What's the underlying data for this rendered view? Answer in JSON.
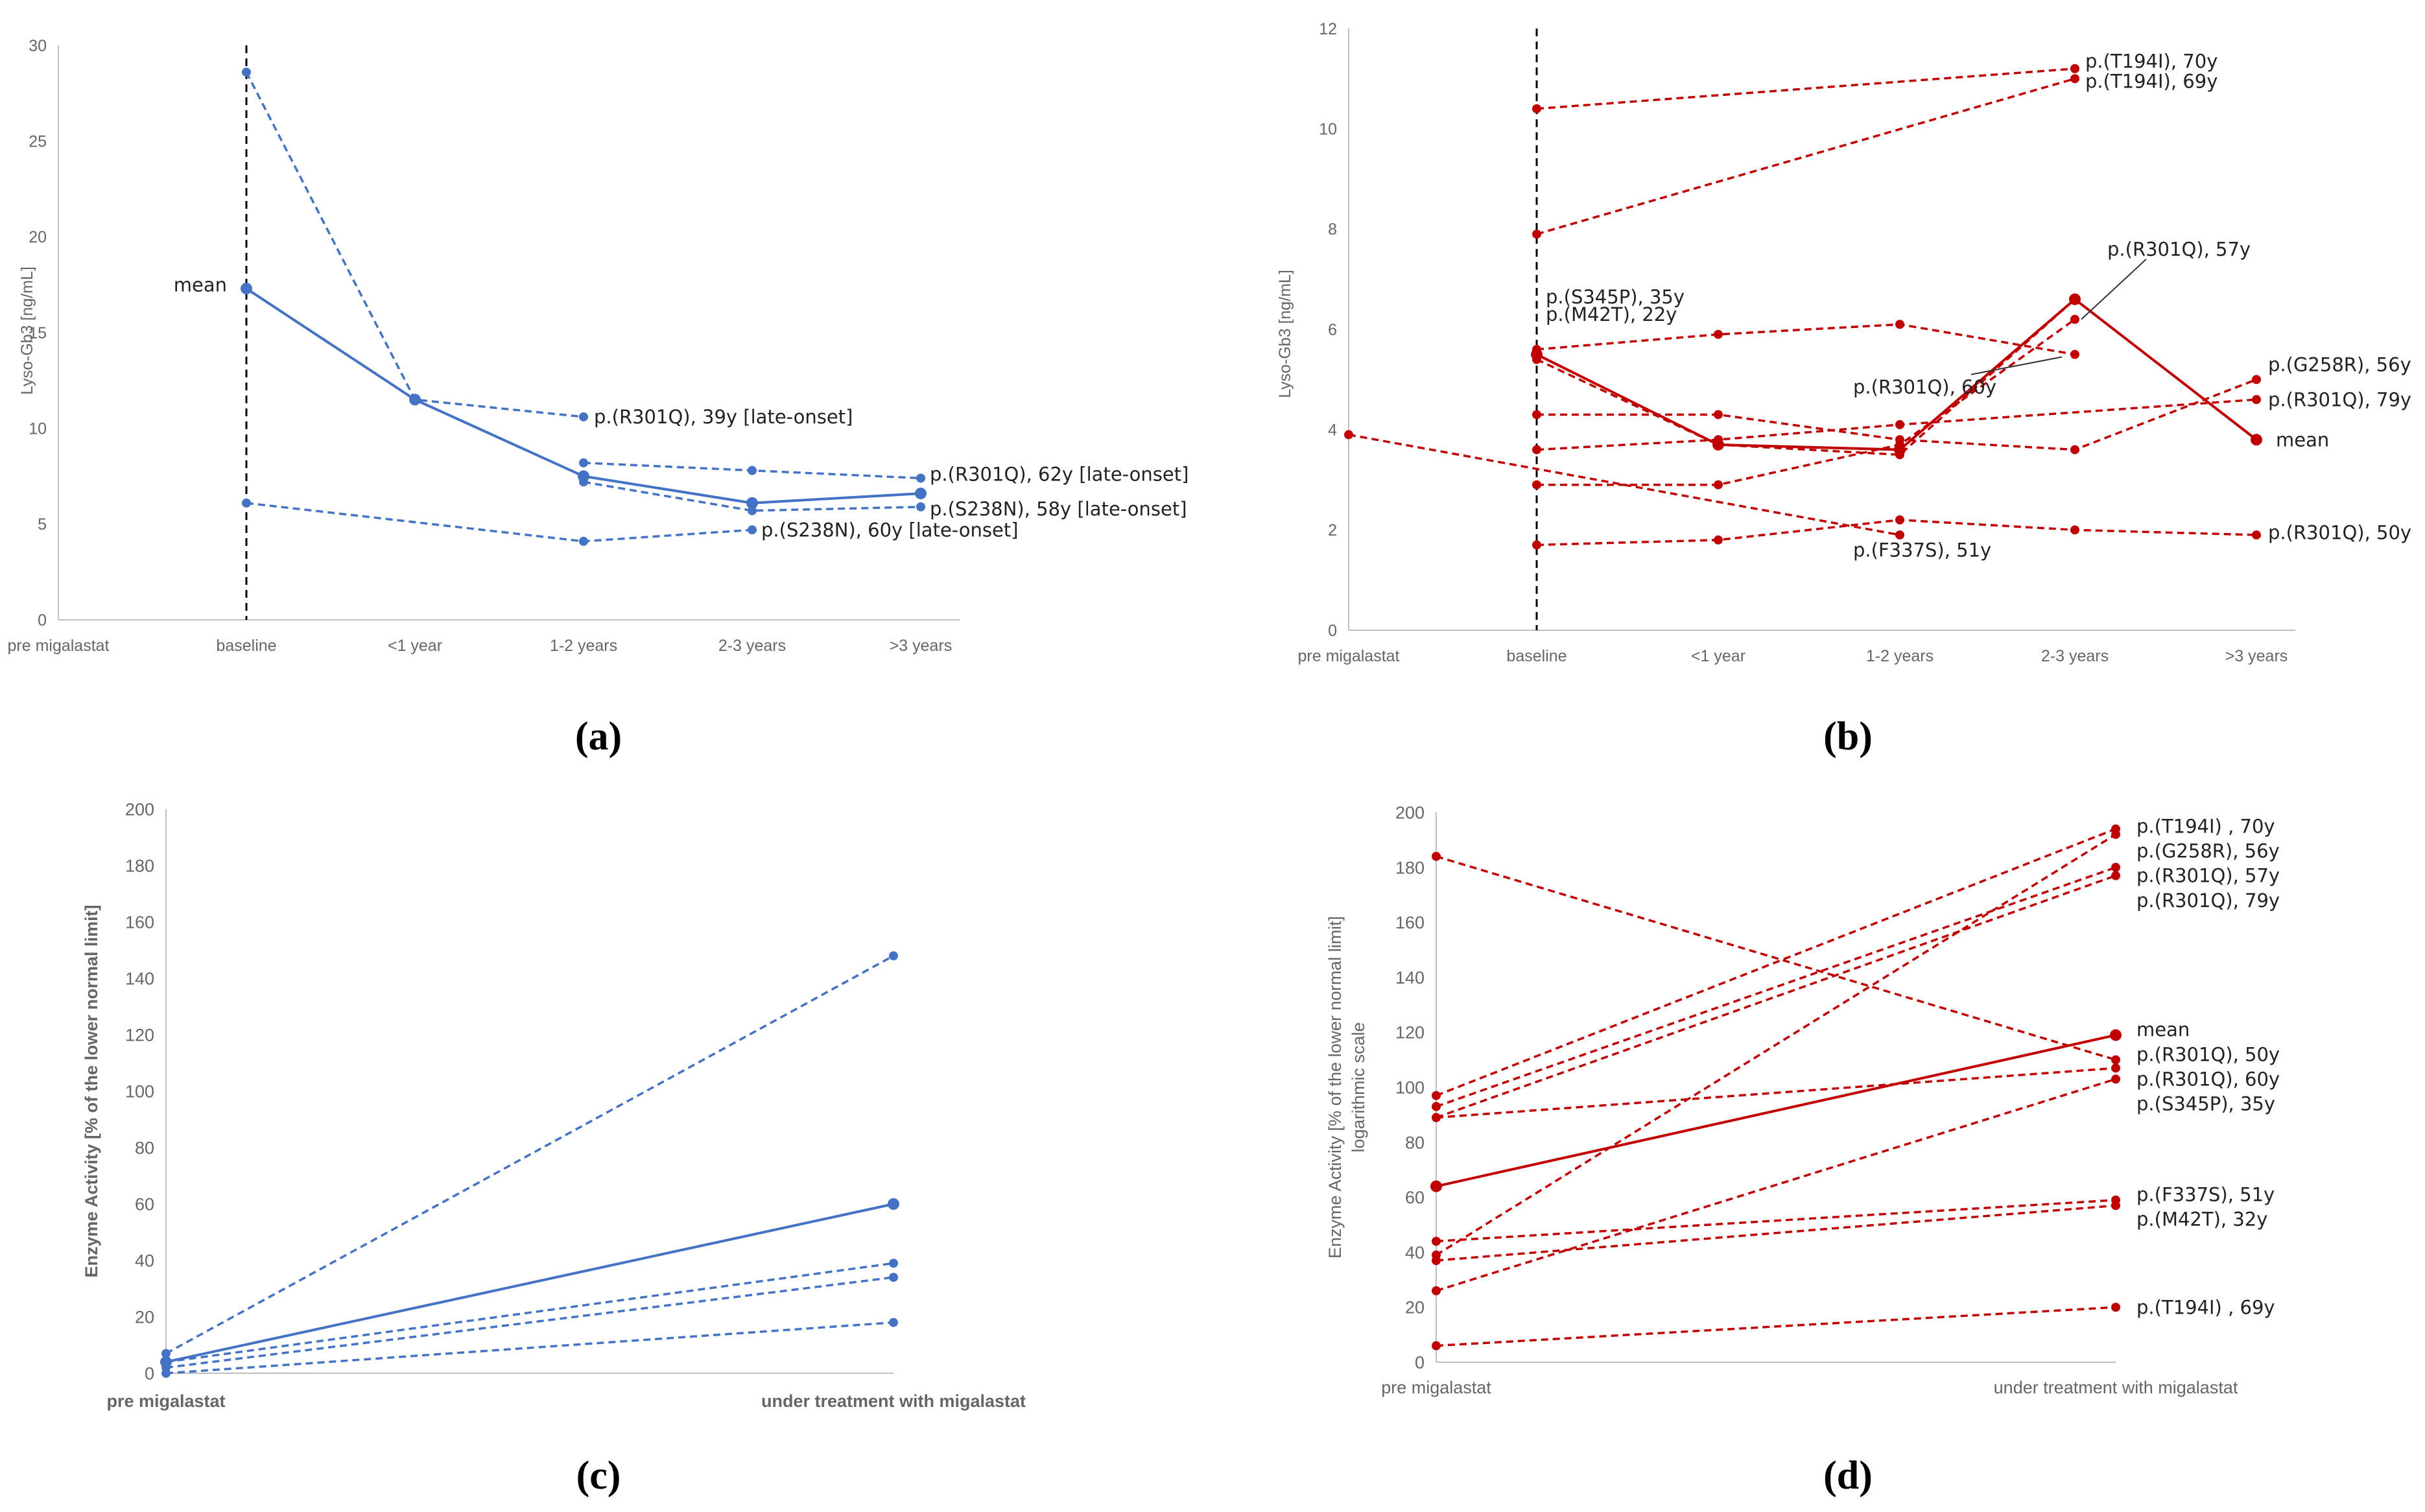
{
  "figure": {
    "panel_labels": [
      "(a)",
      "(b)",
      "(c)",
      "(d)"
    ]
  },
  "colors": {
    "blue": "#4472c4",
    "red": "#c00000",
    "axis": "#bfbfbf",
    "text": "#666666"
  },
  "chart_data": [
    {
      "id": "a",
      "type": "line",
      "xlabel": "",
      "ylabel": "Lyso-Gb3 [ng/mL]",
      "categories": [
        "pre migalastat",
        "baseline",
        "<1 year",
        "1-2 years",
        "2-3 years",
        ">3 years"
      ],
      "ylim": [
        0,
        30
      ],
      "yticks": [
        0,
        5,
        10,
        15,
        20,
        25,
        30
      ],
      "baseline_marker": "baseline",
      "series": [
        {
          "style": "dashed",
          "values": [
            null,
            28.6,
            11.5,
            10.6,
            null,
            null
          ]
        },
        {
          "style": "dashed",
          "values": [
            null,
            null,
            null,
            8.2,
            7.8,
            7.4
          ]
        },
        {
          "style": "dashed",
          "values": [
            null,
            null,
            null,
            7.2,
            5.7,
            5.9
          ]
        },
        {
          "style": "dashed",
          "values": [
            null,
            6.1,
            null,
            4.1,
            4.7,
            null
          ]
        },
        {
          "name": "mean",
          "style": "solid",
          "values": [
            null,
            17.3,
            11.5,
            7.5,
            6.1,
            6.6
          ]
        }
      ],
      "annotations": [
        {
          "text": "mean",
          "x": "baseline",
          "y": 17.5,
          "side": "left"
        },
        {
          "text": "p.(R301Q), 39y [late-onset]",
          "x": "1-2 years",
          "y": 10.6
        },
        {
          "text": "p.(R301Q), 62y [late-onset]",
          "x": ">3 years",
          "y": 7.6
        },
        {
          "text": "p.(S238N), 58y [late-onset]",
          "x": ">3 years",
          "y": 5.8
        },
        {
          "text": "p.(S238N), 60y [late-onset]",
          "x": "2-3 years",
          "y": 4.7
        }
      ]
    },
    {
      "id": "b",
      "type": "line",
      "xlabel": "",
      "ylabel": "Lyso-Gb3 [ng/mL]",
      "categories": [
        "pre migalastat",
        "baseline",
        "<1 year",
        "1-2 years",
        "2-3 years",
        ">3 years"
      ],
      "ylim": [
        0,
        12
      ],
      "yticks": [
        0,
        2,
        4,
        6,
        8,
        10,
        12
      ],
      "baseline_marker": "baseline",
      "series": [
        {
          "style": "dashed",
          "values": [
            null,
            10.4,
            null,
            null,
            11.2,
            null
          ]
        },
        {
          "style": "dashed",
          "values": [
            null,
            7.9,
            null,
            null,
            11.0,
            null
          ]
        },
        {
          "style": "dashed",
          "values": [
            null,
            5.6,
            5.9,
            6.1,
            5.5,
            null
          ]
        },
        {
          "style": "dashed",
          "values": [
            null,
            5.4,
            3.7,
            3.5,
            6.6,
            null
          ]
        },
        {
          "style": "dashed",
          "values": [
            null,
            4.3,
            4.3,
            3.8,
            3.6,
            5.0
          ]
        },
        {
          "style": "dashed",
          "values": [
            null,
            3.6,
            3.8,
            4.1,
            null,
            4.6
          ]
        },
        {
          "style": "dashed",
          "values": [
            null,
            2.9,
            2.9,
            3.7,
            6.2,
            null
          ]
        },
        {
          "style": "dashed",
          "values": [
            3.9,
            null,
            null,
            1.9,
            null,
            null
          ]
        },
        {
          "style": "dashed",
          "values": [
            null,
            1.7,
            1.8,
            2.2,
            2.0,
            1.9
          ]
        },
        {
          "name": "mean",
          "style": "solid",
          "values": [
            null,
            5.5,
            3.7,
            3.6,
            6.6,
            3.8
          ]
        }
      ],
      "annotations": [
        {
          "text": "p.(T194I), 70y",
          "x": "2-3 years",
          "y": 11.35
        },
        {
          "text": "p.(T194I), 69y",
          "x": "2-3 years",
          "y": 10.95
        },
        {
          "text": "p.(S345P), 35y",
          "x": "baseline",
          "y": 6.65
        },
        {
          "text": "p.(M42T), 22y",
          "x": "baseline",
          "y": 6.3
        },
        {
          "text": "p.(R301Q), 57y",
          "x": "2-3 years",
          "y": 7.6
        },
        {
          "text": "p.(R301Q), 60y",
          "x": "1-2 years",
          "y": 4.85
        },
        {
          "text": "p.(G258R), 56y",
          "x": ">3 years",
          "y": 5.3
        },
        {
          "text": "p.(R301Q), 79y",
          "x": ">3 years",
          "y": 4.6
        },
        {
          "text": "mean",
          "x": ">3 years",
          "y": 3.8
        },
        {
          "text": "p.(F337S), 51y",
          "x": "1-2 years",
          "y": 1.6
        },
        {
          "text": "p.(R301Q), 50y",
          "x": ">3 years",
          "y": 1.95
        }
      ]
    },
    {
      "id": "c",
      "type": "line",
      "xlabel": "",
      "ylabel": "Enzyme Activity [% of the lower normal limit]",
      "categories": [
        "pre migalastat",
        "under treatment with migalastat"
      ],
      "ylim": [
        0,
        200
      ],
      "yticks": [
        0,
        20,
        40,
        60,
        80,
        100,
        120,
        140,
        160,
        180,
        200
      ],
      "series": [
        {
          "style": "dashed",
          "values": [
            7,
            148
          ]
        },
        {
          "style": "dashed",
          "values": [
            4,
            39
          ]
        },
        {
          "style": "dashed",
          "values": [
            2,
            34
          ]
        },
        {
          "style": "dashed",
          "values": [
            0,
            18
          ]
        },
        {
          "name": "mean",
          "style": "solid",
          "values": [
            4,
            60
          ]
        }
      ],
      "annotations": []
    },
    {
      "id": "d",
      "type": "line",
      "xlabel": "",
      "ylabel": "Enzyme Activity [% of the lower normal limit]",
      "ylabel2": "logarithmic scale",
      "categories": [
        "pre migalastat",
        "under treatment with migalastat"
      ],
      "ylim": [
        0,
        200
      ],
      "yticks": [
        0,
        20,
        40,
        60,
        80,
        100,
        120,
        140,
        160,
        180,
        200
      ],
      "series": [
        {
          "style": "dashed",
          "values": [
            184,
            110
          ]
        },
        {
          "style": "dashed",
          "values": [
            97,
            194
          ]
        },
        {
          "style": "dashed",
          "values": [
            93,
            180
          ]
        },
        {
          "style": "dashed",
          "values": [
            89,
            177
          ]
        },
        {
          "style": "dashed",
          "values": [
            89,
            107
          ]
        },
        {
          "style": "dashed",
          "values": [
            39,
            192
          ]
        },
        {
          "style": "dashed",
          "values": [
            26,
            103
          ]
        },
        {
          "style": "dashed",
          "values": [
            44,
            59
          ]
        },
        {
          "style": "dashed",
          "values": [
            37,
            57
          ]
        },
        {
          "style": "dashed",
          "values": [
            6,
            20
          ]
        },
        {
          "name": "mean",
          "style": "solid",
          "values": [
            64,
            119
          ]
        }
      ],
      "annotations": [
        {
          "text": "p.(T194I) , 70y",
          "y": 195
        },
        {
          "text": "p.(G258R), 56y",
          "y": 186
        },
        {
          "text": "p.(R301Q), 57y",
          "y": 177
        },
        {
          "text": "p.(R301Q), 79y",
          "y": 168
        },
        {
          "text": "mean",
          "y": 121
        },
        {
          "text": "p.(R301Q), 50y",
          "y": 112
        },
        {
          "text": "p.(R301Q), 60y",
          "y": 103
        },
        {
          "text": "p.(S345P), 35y",
          "y": 94
        },
        {
          "text": "p.(F337S), 51y",
          "y": 61
        },
        {
          "text": "p.(M42T), 32y",
          "y": 52
        },
        {
          "text": "p.(T194I) , 69y",
          "y": 20
        }
      ]
    }
  ]
}
